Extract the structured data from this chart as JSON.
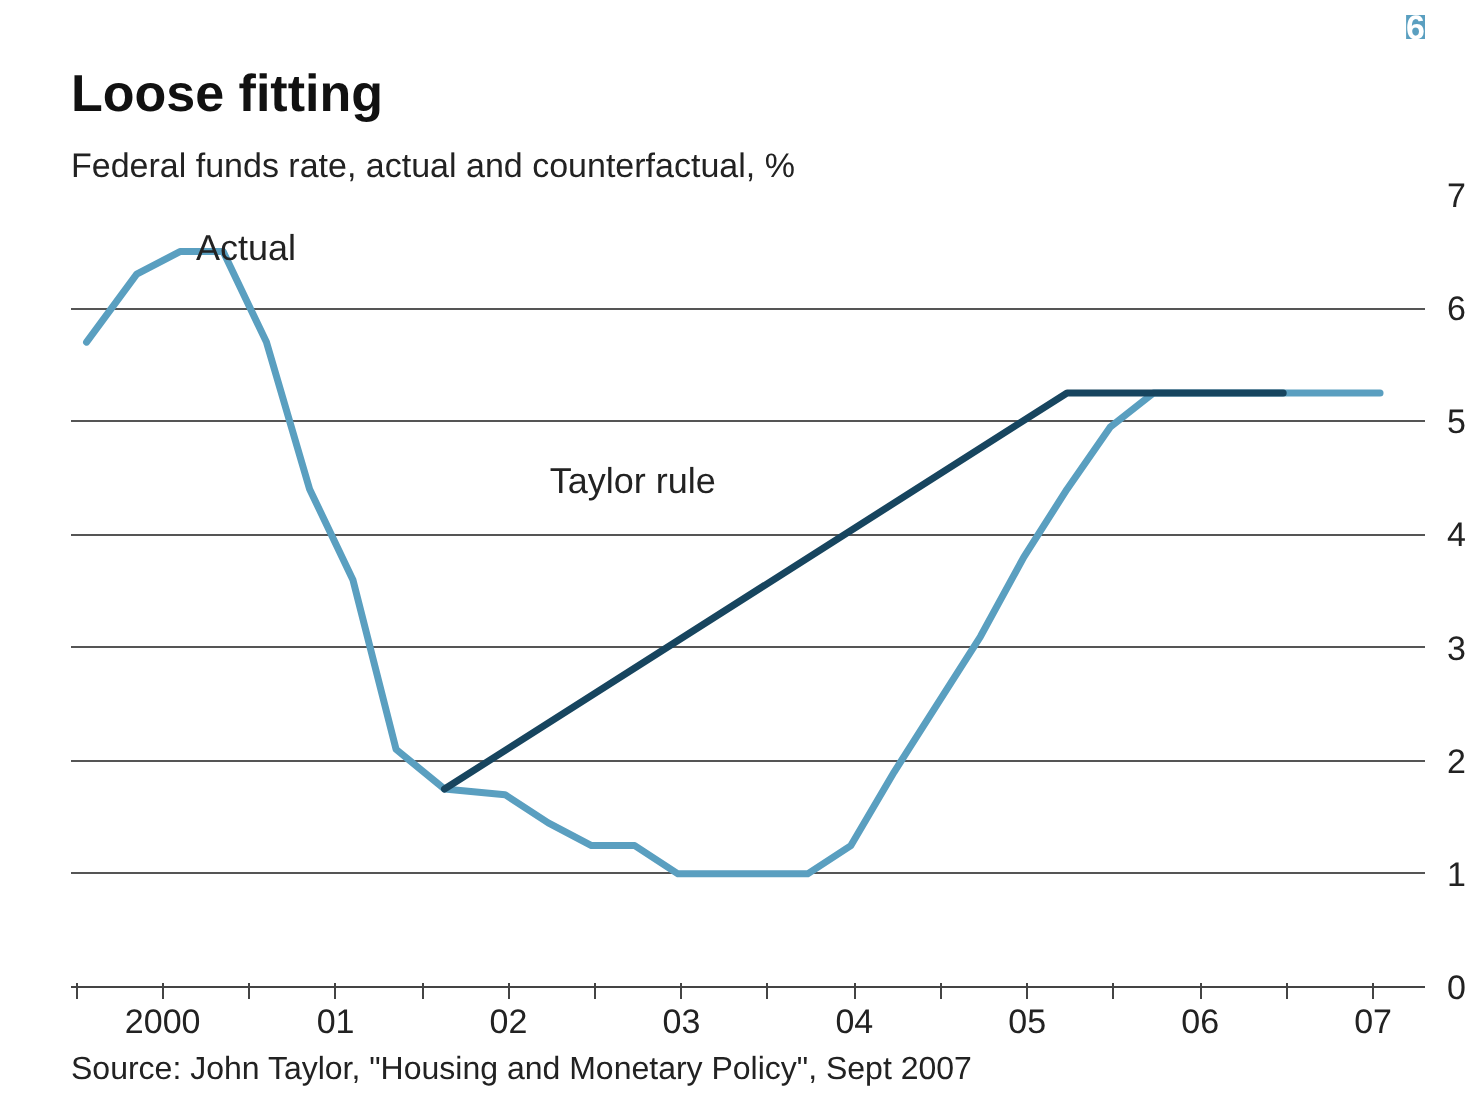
{
  "chart_data": {
    "type": "line",
    "title": "Loose fitting",
    "subtitle": "Federal funds rate, actual and counterfactual, %",
    "series": [
      {
        "name": "Actual",
        "color": "#5a9fc0",
        "x": [
          1999.56,
          1999.85,
          2000.1,
          2000.35,
          2000.6,
          2000.85,
          2001.1,
          2001.35,
          2001.63,
          2001.98,
          2002.23,
          2002.48,
          2002.73,
          2002.98,
          2003.23,
          2003.48,
          2003.73,
          2003.98,
          2004.23,
          2004.48,
          2004.73,
          2004.98,
          2005.23,
          2005.48,
          2005.73,
          2006.1,
          2006.5,
          2007.04
        ],
        "values": [
          5.7,
          6.3,
          6.5,
          6.5,
          5.7,
          4.4,
          3.6,
          2.1,
          1.75,
          1.7,
          1.45,
          1.25,
          1.25,
          1.0,
          1.0,
          1.0,
          1.0,
          1.25,
          1.9,
          2.5,
          3.1,
          3.8,
          4.4,
          4.95,
          5.25,
          5.25,
          5.25,
          5.25
        ]
      },
      {
        "name": "Taylor rule",
        "color": "#17455f",
        "x": [
          2001.63,
          2005.23,
          2006.48
        ],
        "values": [
          1.75,
          5.25,
          5.25
        ]
      }
    ],
    "xlim": [
      1999.47,
      2007.3
    ],
    "xticks": [
      {
        "value": 1999.5,
        "label": null
      },
      2000,
      {
        "value": 2000.5,
        "label": null
      },
      {
        "value": 2001,
        "label": "01"
      },
      {
        "value": 2001.5,
        "label": null
      },
      {
        "value": 2002,
        "label": "02"
      },
      {
        "value": 2002.5,
        "label": null
      },
      {
        "value": 2003,
        "label": "03"
      },
      {
        "value": 2003.5,
        "label": null
      },
      {
        "value": 2004,
        "label": "04"
      },
      {
        "value": 2004.5,
        "label": null
      },
      {
        "value": 2005,
        "label": "05"
      },
      {
        "value": 2005.5,
        "label": null
      },
      {
        "value": 2006,
        "label": "06"
      },
      {
        "value": 2006.5,
        "label": null
      },
      {
        "value": 2007,
        "label": "07"
      }
    ],
    "ylim": [
      0,
      7
    ],
    "yticks": [
      0,
      1,
      2,
      3,
      4,
      5,
      6,
      7
    ],
    "grid": "y",
    "line_style": "solid",
    "marker": "none",
    "annotations": [
      "6",
      "Source: John Taylor, \"Housing and Monetary Policy\", Sept 2007"
    ]
  }
}
